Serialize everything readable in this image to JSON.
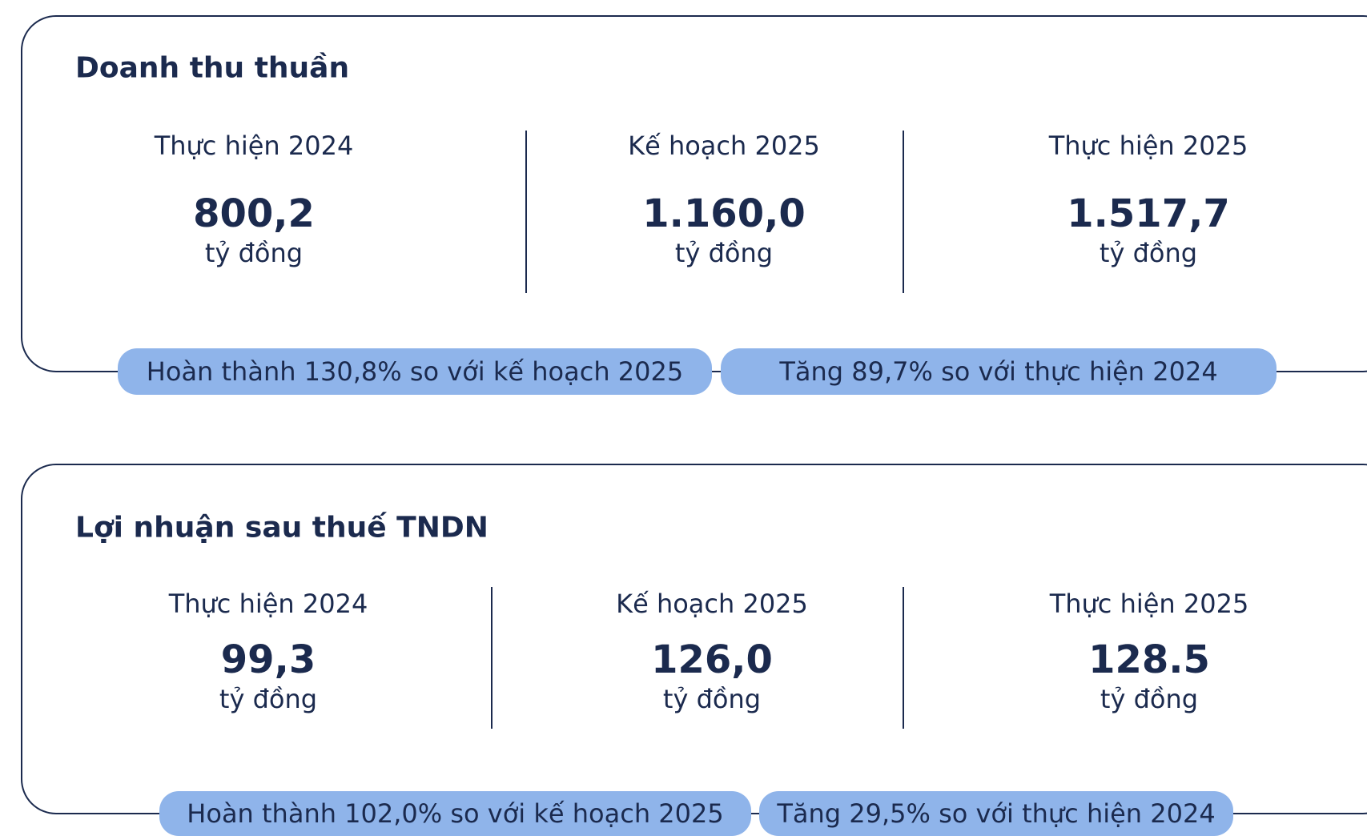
{
  "cards": [
    {
      "title": "Doanh thu thuần",
      "columns": [
        {
          "label": "Thực hiện 2024",
          "value": "800,2",
          "unit": "tỷ đồng"
        },
        {
          "label": "Kế hoạch 2025",
          "value": "1.160,0",
          "unit": "tỷ đồng"
        },
        {
          "label": "Thực hiện 2025",
          "value": "1.517,7",
          "unit": "tỷ đồng"
        }
      ],
      "badges": [
        "Hoàn thành 130,8% so với kế hoạch 2025",
        "Tăng 89,7% so với thực hiện 2024"
      ]
    },
    {
      "title": "Lợi nhuận sau thuế TNDN",
      "columns": [
        {
          "label": "Thực hiện 2024",
          "value": "99,3",
          "unit": "tỷ đồng"
        },
        {
          "label": "Kế hoạch 2025",
          "value": "126,0",
          "unit": "tỷ đồng"
        },
        {
          "label": "Thực hiện 2025",
          "value": "128.5",
          "unit": "tỷ đồng"
        }
      ],
      "badges": [
        "Hoàn thành 102,0% so với kế hoạch 2025",
        "Tăng 29,5% so với thực hiện 2024"
      ]
    }
  ]
}
